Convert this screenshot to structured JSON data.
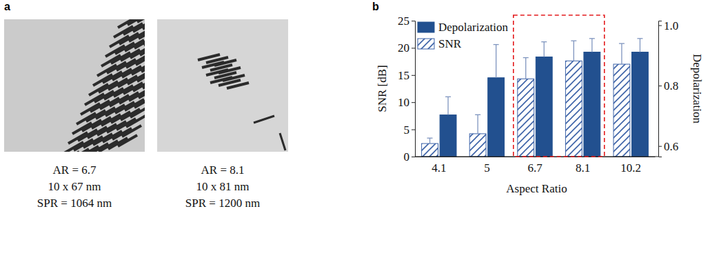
{
  "panel_a": {
    "label": "a",
    "images": [
      {
        "lines": [
          "AR = 6.7",
          "10 x 67 nm",
          "SPR = 1064 nm"
        ]
      },
      {
        "lines": [
          "AR = 8.1",
          "10 x 81 nm",
          "SPR = 1200 nm"
        ]
      }
    ]
  },
  "chart_data": {
    "label": "b",
    "type": "bar",
    "categories": [
      "4.1",
      "5",
      "6.7",
      "8.1",
      "10.2"
    ],
    "xlabel": "Aspect Ratio",
    "ylabel": "SNR [dB]",
    "y2label": "Depolarization",
    "ylim": [
      0,
      25
    ],
    "yticks": [
      0,
      5,
      10,
      15,
      20,
      25
    ],
    "y2lim": [
      0.565,
      1.015
    ],
    "y2ticks": [
      0.6,
      0.8,
      {
        "value": 1.0,
        "label": "1.0"
      }
    ],
    "legend": "upper left",
    "series": [
      {
        "name": "Depolarization",
        "axis": "y2",
        "color": "#22508f",
        "marker": "solid",
        "values": [
          0.703,
          0.826,
          0.895,
          0.911,
          0.911
        ],
        "errors": [
          0.06,
          0.11,
          0.05,
          0.045,
          0.045
        ]
      },
      {
        "name": "SNR",
        "color": "#3d63a8",
        "marker": "hatch",
        "values": [
          2.4,
          4.2,
          14.3,
          17.6,
          17.0
        ],
        "errors": [
          1.0,
          3.5,
          3.9,
          3.7,
          3.8
        ]
      }
    ]
  }
}
